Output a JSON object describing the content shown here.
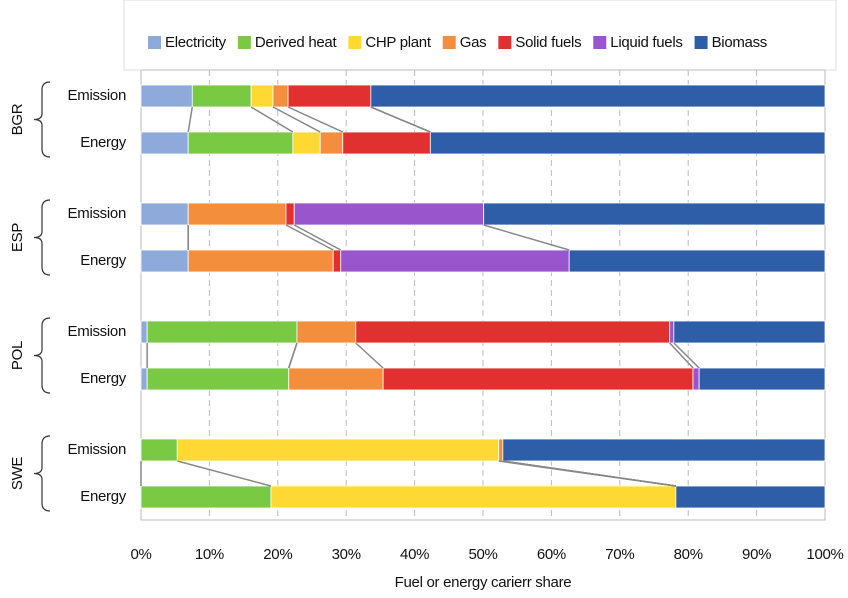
{
  "chart_data": {
    "type": "stacked-barh",
    "x_label": "Fuel or energy carierr share",
    "groups": [
      "BGR",
      "ESP",
      "POL",
      "SWE"
    ],
    "categories": [
      "Emission",
      "Energy",
      "Emission",
      "Energy",
      "Emission",
      "Energy",
      "Emission",
      "Energy"
    ],
    "xlim": [
      0,
      100
    ],
    "xticks": [
      {
        "value": 0,
        "label": "0%"
      },
      {
        "value": 10,
        "label": "10%"
      },
      {
        "value": 20,
        "label": "20%"
      },
      {
        "value": 30,
        "label": "30%"
      },
      {
        "value": 40,
        "label": "40%"
      },
      {
        "value": 50,
        "label": "50%"
      },
      {
        "value": 60,
        "label": "60%"
      },
      {
        "value": 70,
        "label": "70%"
      },
      {
        "value": 80,
        "label": "80%"
      },
      {
        "value": 90,
        "label": "90%"
      },
      {
        "value": 100,
        "label": "100%"
      }
    ],
    "grid": true,
    "legend": "top",
    "series": [
      {
        "name": "Electricity",
        "color": "#8eaadb",
        "values": [
          7.5,
          6.9,
          6.9,
          6.9,
          0.9,
          0.9,
          0,
          0
        ]
      },
      {
        "name": "Derived heat",
        "color": "#7ac943",
        "values": [
          8.6,
          15.3,
          0,
          0,
          21.9,
          20.7,
          5.3,
          19.0
        ]
      },
      {
        "name": "CHP plant",
        "color": "#ffd933",
        "values": [
          3.2,
          4.0,
          0,
          0,
          0,
          0,
          47.0,
          59.2
        ]
      },
      {
        "name": "Gas",
        "color": "#f28e3c",
        "values": [
          2.2,
          3.3,
          14.3,
          21.2,
          8.6,
          13.8,
          0.6,
          0
        ]
      },
      {
        "name": "Solid fuels",
        "color": "#e03030",
        "values": [
          12.1,
          12.8,
          1.2,
          1.1,
          45.9,
          45.3,
          0,
          0
        ]
      },
      {
        "name": "Liquid fuels",
        "color": "#9955cc",
        "values": [
          0,
          0,
          27.7,
          33.4,
          0.6,
          0.9,
          0,
          0
        ]
      },
      {
        "name": "Biomass",
        "color": "#2f5ea8",
        "values": [
          66.4,
          57.7,
          49.9,
          37.4,
          22.1,
          18.4,
          47.1,
          21.8
        ]
      }
    ]
  }
}
